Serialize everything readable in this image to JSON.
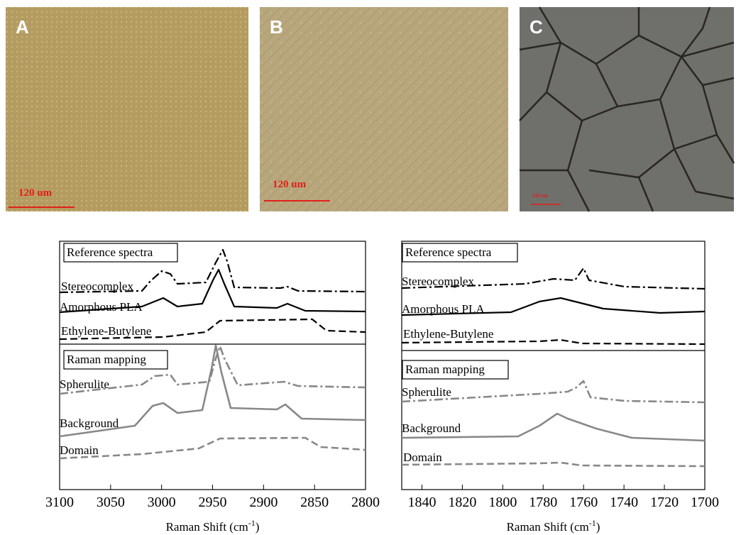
{
  "images": [
    {
      "label": "A",
      "scale_bar": "120 um"
    },
    {
      "label": "B",
      "scale_bar": "120 um"
    },
    {
      "label": "C",
      "scale_bar": "120 um"
    }
  ],
  "charts": [
    {
      "type": "line",
      "xlim": [
        3100,
        2800
      ],
      "xticks": [
        3100,
        3050,
        3000,
        2950,
        2900,
        2850,
        2800
      ],
      "xlabel_prefix": "Raman Shift (cm",
      "xlabel_sup": "-1",
      "xlabel_suffix": ")",
      "sections": [
        {
          "title": "Reference spectra",
          "curves": [
            "Stereocomplex",
            "Amorphous PLA",
            "Ethylene-Butylene"
          ]
        },
        {
          "title": "Raman mapping",
          "curves": [
            "Spherulite",
            "Background",
            "Domain"
          ]
        }
      ]
    },
    {
      "type": "line",
      "xlim": [
        1850,
        1700
      ],
      "xticks": [
        1840,
        1820,
        1800,
        1780,
        1760,
        1740,
        1720,
        1700
      ],
      "xlabel_prefix": "Raman Shift (cm",
      "xlabel_sup": "-1",
      "xlabel_suffix": ")",
      "sections": [
        {
          "title": "Reference spectra",
          "curves": [
            "Stereocomplex",
            "Amorphous PLA",
            "Ethylene-Butylene"
          ]
        },
        {
          "title": "Raman mapping",
          "curves": [
            "Spherulite",
            "Background",
            "Domain"
          ]
        }
      ]
    }
  ]
}
